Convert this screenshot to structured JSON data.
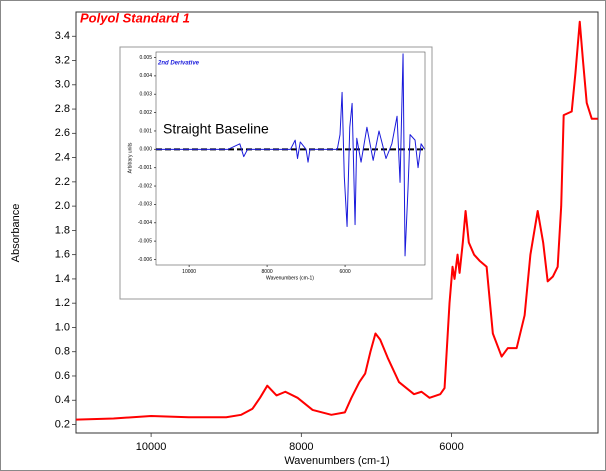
{
  "chart_data": [
    {
      "type": "line",
      "title": "Polyol Standard 1",
      "x_label": "Wavenumbers (cm-1)",
      "y_label": "Absorbance",
      "color": "#ff0000",
      "x": [
        11000,
        10500,
        10000,
        9500,
        9000,
        8800,
        8650,
        8550,
        8453,
        8330,
        8213,
        8050,
        7850,
        7600,
        7420,
        7333,
        7227,
        7150,
        7080,
        7013,
        6950,
        6850,
        6700,
        6500,
        6400,
        6293,
        6150,
        6093,
        6027,
        5987,
        5960,
        5920,
        5893,
        5850,
        5813,
        5770,
        5700,
        5627,
        5533,
        5450,
        5333,
        5250,
        5133,
        5027,
        4950,
        4853,
        4780,
        4720,
        4650,
        4587,
        4540,
        4507,
        4400,
        4350,
        4293,
        4250,
        4200,
        4133,
        4053
      ],
      "values": [
        0.24,
        0.25,
        0.27,
        0.26,
        0.26,
        0.28,
        0.33,
        0.42,
        0.52,
        0.44,
        0.47,
        0.42,
        0.32,
        0.28,
        0.3,
        0.42,
        0.55,
        0.62,
        0.8,
        0.95,
        0.9,
        0.75,
        0.55,
        0.45,
        0.47,
        0.42,
        0.45,
        0.5,
        1.2,
        1.5,
        1.4,
        1.6,
        1.45,
        1.7,
        1.96,
        1.7,
        1.6,
        1.55,
        1.5,
        0.95,
        0.76,
        0.83,
        0.83,
        1.1,
        1.6,
        1.96,
        1.7,
        1.38,
        1.42,
        1.5,
        2.0,
        2.75,
        2.78,
        3.1,
        3.52,
        3.2,
        2.85,
        2.72,
        2.72
      ],
      "xlim": [
        11000,
        4050
      ],
      "ylim": [
        0.13,
        3.6
      ],
      "xticks": [
        10000,
        8000,
        6000
      ],
      "yticks": [
        {
          "value": 0.2,
          "label": "0.2"
        },
        {
          "value": 0.4,
          "label": "0.4"
        },
        {
          "value": 0.6,
          "label": "0.6"
        },
        {
          "value": 0.8,
          "label": "0.8"
        },
        {
          "value": 1.0,
          "label": "1.0"
        },
        {
          "value": 1.2,
          "label": "1.2"
        },
        {
          "value": 1.4,
          "label": "1.4"
        },
        {
          "value": 1.6,
          "label": "1.6"
        },
        {
          "value": 1.8,
          "label": "1.8"
        },
        {
          "value": 2.0,
          "label": "2.0"
        },
        {
          "value": 2.2,
          "label": "2.2"
        },
        {
          "value": 2.4,
          "label": "2.4"
        },
        {
          "value": 2.6,
          "label": "2.6"
        },
        {
          "value": 2.8,
          "label": "2.8"
        },
        {
          "value": 3.0,
          "label": "3.0"
        },
        {
          "value": 3.2,
          "label": "3.2"
        },
        {
          "value": 3.4,
          "label": "3.4"
        }
      ]
    },
    {
      "type": "line",
      "title": "2nd Derivative",
      "annotation": "Straight Baseline",
      "x_label": "Wavenumbers (cm-1)",
      "y_label": "Arbitrary units",
      "color": "#1a1adb",
      "x": [
        10850,
        9000,
        8700,
        8600,
        8500,
        7400,
        7280,
        7220,
        7150,
        7000,
        6950,
        6900,
        6200,
        6130,
        6077,
        6020,
        5949,
        5880,
        5820,
        5780,
        5744,
        5700,
        5590,
        5440,
        5280,
        5130,
        4950,
        4800,
        4667,
        4590,
        4513,
        4462,
        4385,
        4333,
        4205,
        4128,
        4050,
        3960
      ],
      "values": [
        0,
        0,
        0.0003,
        -0.0004,
        0,
        0,
        0.0005,
        -0.0005,
        0.0004,
        0,
        -0.0007,
        0,
        0,
        0.0008,
        0.0031,
        -0.0015,
        -0.0042,
        0.0012,
        0.0025,
        -0.001,
        -0.0041,
        0.0006,
        -0.0007,
        0.0012,
        -0.0006,
        0.001,
        -0.0005,
        0.0003,
        0.0018,
        -0.0018,
        0.0052,
        -0.0058,
        -0.0021,
        0.0008,
        0.0005,
        -0.001,
        0.0003,
        0
      ],
      "xlim": [
        10850,
        3950
      ],
      "ylim": [
        -0.0063,
        0.0053
      ],
      "xticks": [
        10000,
        8000,
        6000
      ],
      "yticks": [
        0.005,
        0.004,
        0.003,
        0.002,
        0.001,
        {
          "value": 0,
          "label": "0.000"
        },
        -0.001,
        -0.002,
        -0.003,
        -0.004,
        -0.005,
        -0.006
      ]
    }
  ]
}
